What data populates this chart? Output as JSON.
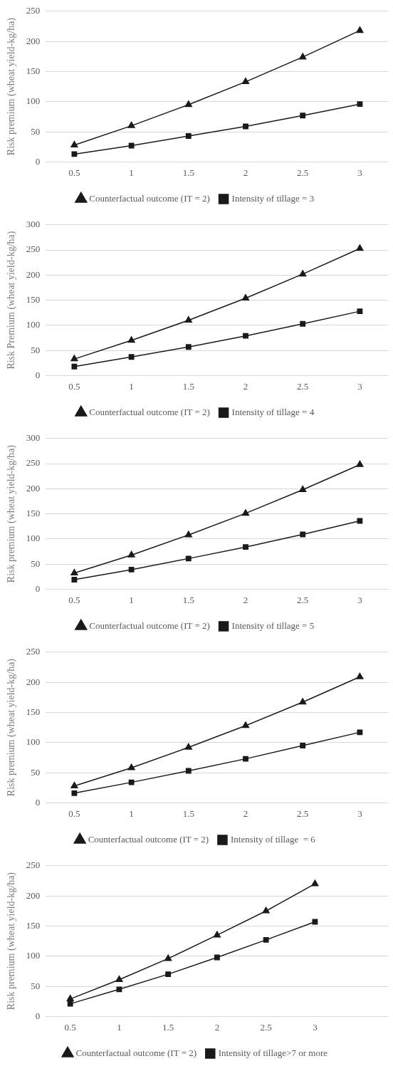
{
  "chart_data": [
    {
      "type": "line",
      "ylabel": "Risk premium (wheat yield-kg/ha)",
      "categories": [
        "0.5",
        "1",
        "1.5",
        "2",
        "2.5",
        "3"
      ],
      "series": [
        {
          "name": "Counterfactual outcome (IT = 2)",
          "color": "#1a1a1a",
          "marker": "triangle",
          "values": [
            28,
            60,
            95,
            133,
            174,
            218
          ]
        },
        {
          "name": "Intensity of tillage = 3",
          "color": "#1a1a1a",
          "marker": "square",
          "values": [
            13,
            27,
            43,
            59,
            77,
            96
          ]
        }
      ],
      "ylim": [
        0,
        250
      ],
      "yticks": [
        0,
        50,
        100,
        150,
        200,
        250
      ],
      "grid": "y",
      "legend": "bottom"
    },
    {
      "type": "line",
      "ylabel": "Risk Premium (wheat yield-kg/ha)",
      "categories": [
        "0.5",
        "1",
        "1.5",
        "2",
        "2.5",
        "3"
      ],
      "series": [
        {
          "name": "Counterfactual outcome (IT = 2)",
          "color": "#1a1a1a",
          "marker": "triangle",
          "values": [
            33,
            70,
            110,
            154,
            202,
            253
          ]
        },
        {
          "name": "Intensity of tillage = 4",
          "color": "#1a1a1a",
          "marker": "square",
          "values": [
            18,
            37,
            57,
            79,
            103,
            128
          ]
        }
      ],
      "ylim": [
        0,
        300
      ],
      "yticks": [
        0,
        50,
        100,
        150,
        200,
        250,
        300
      ],
      "grid": "y",
      "legend": "bottom"
    },
    {
      "type": "line",
      "ylabel": "Risk premium (wheat yield-kg/ha)",
      "categories": [
        "0.5",
        "1",
        "1.5",
        "2",
        "2.5",
        "3"
      ],
      "series": [
        {
          "name": "Counterfactual outcome (IT = 2)",
          "color": "#1a1a1a",
          "marker": "triangle",
          "values": [
            32,
            68,
            108,
            151,
            198,
            248
          ]
        },
        {
          "name": "Intensity of tillage = 5",
          "color": "#1a1a1a",
          "marker": "square",
          "values": [
            19,
            39,
            61,
            84,
            109,
            136
          ]
        }
      ],
      "ylim": [
        0,
        300
      ],
      "yticks": [
        0,
        50,
        100,
        150,
        200,
        250,
        300
      ],
      "grid": "y",
      "legend": "bottom"
    },
    {
      "type": "line",
      "ylabel": "Risk premium (wheat yield-kg/ha)",
      "categories": [
        "0.5",
        "1",
        "1.5",
        "2",
        "2.5",
        "3"
      ],
      "series": [
        {
          "name": "Counterfactual outcome (IT = 2)",
          "color": "#1a1a1a",
          "marker": "triangle",
          "values": [
            28,
            58,
            92,
            128,
            167,
            209
          ]
        },
        {
          "name": "Intensity of tillage  = 6",
          "color": "#1a1a1a",
          "marker": "square",
          "values": [
            16,
            34,
            53,
            73,
            95,
            117
          ]
        }
      ],
      "ylim": [
        0,
        250
      ],
      "yticks": [
        0,
        50,
        100,
        150,
        200,
        250
      ],
      "grid": "y",
      "legend": "bottom"
    },
    {
      "type": "line",
      "ylabel": "Risk premium (wheat yield-kg/ha)",
      "categories": [
        "0.5",
        "1",
        "1.5",
        "2",
        "2.5",
        "3",
        null
      ],
      "series": [
        {
          "name": "Counterfactual outcome (IT = 2)",
          "color": "#1a1a1a",
          "marker": "triangle",
          "values": [
            29,
            61,
            96,
            135,
            175,
            220,
            null
          ]
        },
        {
          "name": "Intensity of tillage>7 or more",
          "color": "#1a1a1a",
          "marker": "square",
          "values": [
            21,
            45,
            70,
            98,
            127,
            157,
            null
          ]
        }
      ],
      "ylim": [
        0,
        250
      ],
      "yticks": [
        0,
        50,
        100,
        150,
        200,
        250
      ],
      "grid": "y",
      "legend": "bottom"
    }
  ]
}
